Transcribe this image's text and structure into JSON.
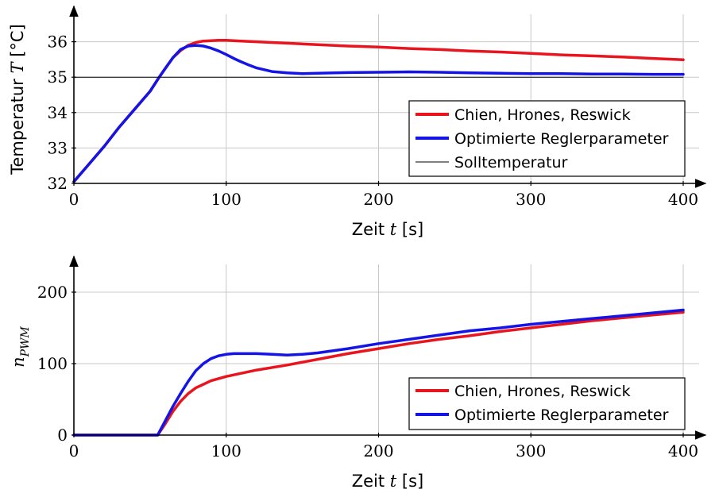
{
  "chart_data": [
    {
      "type": "line",
      "xlabel": "Zeit t [s]",
      "xlabel_text": "Zeit ",
      "xlabel_var": "t",
      "xlabel_unit": " [s]",
      "ylabel": "Temperatur T [°C]",
      "ylabel_text": "Temperatur ",
      "ylabel_var": "T",
      "ylabel_unit": " [°C]",
      "xlim": [
        0,
        415
      ],
      "ylim": [
        32,
        37
      ],
      "xticks": [
        0,
        100,
        200,
        300,
        400
      ],
      "yticks": [
        32,
        33,
        34,
        35,
        36
      ],
      "grid": true,
      "legend_position": "bottom-right",
      "series": [
        {
          "name": "Chien, Hrones, Reswick",
          "color": "#e8141e",
          "x": [
            0,
            10,
            20,
            30,
            40,
            50,
            56,
            60,
            65,
            70,
            75,
            80,
            85,
            90,
            95,
            100,
            110,
            120,
            140,
            160,
            180,
            200,
            220,
            240,
            260,
            280,
            300,
            320,
            340,
            360,
            380,
            400
          ],
          "y": [
            32.05,
            32.55,
            33.05,
            33.6,
            34.1,
            34.6,
            35.0,
            35.25,
            35.55,
            35.75,
            35.9,
            35.98,
            36.02,
            36.03,
            36.04,
            36.04,
            36.02,
            36.0,
            35.96,
            35.92,
            35.88,
            35.85,
            35.81,
            35.78,
            35.74,
            35.71,
            35.67,
            35.63,
            35.6,
            35.57,
            35.53,
            35.49
          ]
        },
        {
          "name": "Optimierte Reglerparameter",
          "color": "#1414e6",
          "x": [
            0,
            10,
            20,
            30,
            40,
            50,
            56,
            60,
            65,
            70,
            75,
            80,
            85,
            90,
            95,
            100,
            105,
            110,
            115,
            120,
            130,
            140,
            150,
            160,
            180,
            200,
            220,
            240,
            260,
            280,
            300,
            320,
            340,
            360,
            380,
            400
          ],
          "y": [
            32.05,
            32.55,
            33.05,
            33.6,
            34.1,
            34.6,
            35.0,
            35.25,
            35.55,
            35.78,
            35.88,
            35.9,
            35.88,
            35.82,
            35.74,
            35.64,
            35.53,
            35.43,
            35.34,
            35.26,
            35.16,
            35.12,
            35.1,
            35.11,
            35.13,
            35.14,
            35.15,
            35.14,
            35.12,
            35.11,
            35.1,
            35.1,
            35.09,
            35.09,
            35.08,
            35.08
          ]
        },
        {
          "name": "Solltemperatur",
          "color": "#000000",
          "x": [
            0,
            400
          ],
          "y": [
            35,
            35
          ]
        }
      ]
    },
    {
      "type": "line",
      "xlabel": "Zeit t [s]",
      "xlabel_text": "Zeit ",
      "xlabel_var": "t",
      "xlabel_unit": " [s]",
      "ylabel": "n_PWM",
      "ylabel_var": "n",
      "ylabel_sub": "PWM",
      "xlim": [
        0,
        415
      ],
      "ylim": [
        0,
        250
      ],
      "xticks": [
        0,
        100,
        200,
        300,
        400
      ],
      "yticks": [
        0,
        100,
        200
      ],
      "grid": true,
      "legend_position": "bottom-right",
      "series": [
        {
          "name": "Chien, Hrones, Reswick",
          "color": "#e8141e",
          "x": [
            0,
            20,
            40,
            55,
            60,
            65,
            70,
            75,
            80,
            90,
            100,
            120,
            140,
            160,
            180,
            200,
            220,
            240,
            260,
            280,
            300,
            320,
            340,
            360,
            380,
            400
          ],
          "y": [
            0,
            0,
            0,
            0,
            16,
            33,
            47,
            58,
            66,
            76,
            82,
            91,
            98,
            106,
            114,
            121,
            128,
            134,
            139,
            145,
            150,
            155,
            160,
            164,
            168,
            172
          ]
        },
        {
          "name": "Optimierte Reglerparameter",
          "color": "#1414e6",
          "x": [
            0,
            20,
            40,
            55,
            60,
            65,
            70,
            75,
            80,
            85,
            90,
            95,
            100,
            105,
            110,
            120,
            130,
            140,
            150,
            160,
            180,
            200,
            220,
            240,
            260,
            280,
            300,
            320,
            340,
            360,
            380,
            400
          ],
          "y": [
            0,
            0,
            0,
            0,
            20,
            40,
            58,
            75,
            90,
            100,
            107,
            111,
            113,
            114,
            114,
            114,
            113,
            112,
            113,
            115,
            121,
            128,
            134,
            140,
            146,
            150,
            155,
            159,
            163,
            167,
            171,
            175
          ]
        }
      ]
    }
  ]
}
